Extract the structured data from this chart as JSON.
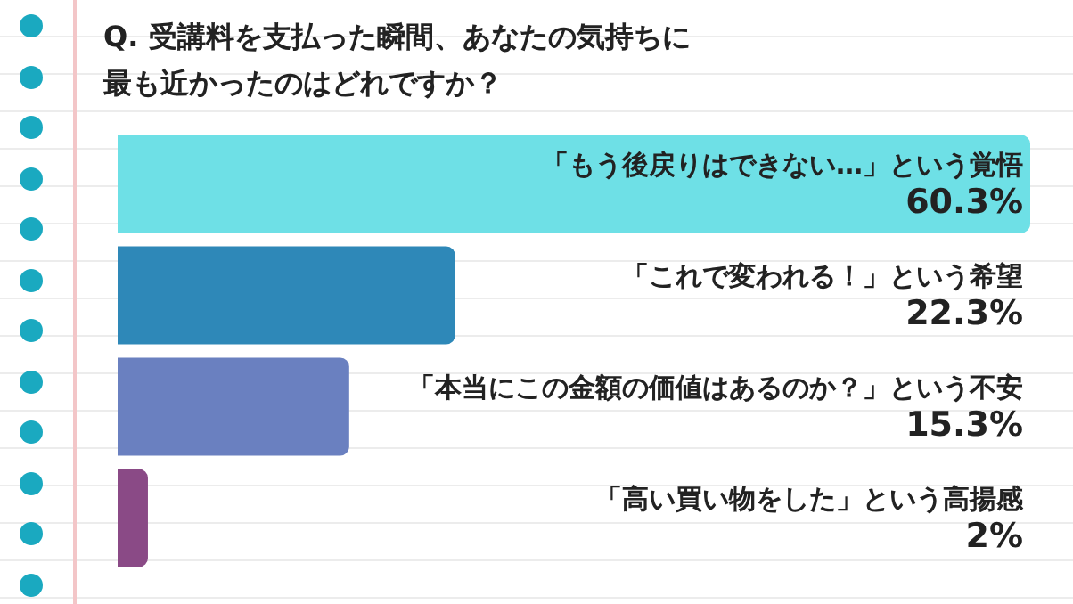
{
  "chart_data": {
    "type": "bar",
    "orientation": "horizontal",
    "title": "Q. 受講料を支払った瞬間、あなたの気持ちに最も近かったのはどれですか？",
    "categories": [
      "「もう後戻りはできない…」という覚悟",
      "「これで変われる！」という希望",
      "「本当にこの金額の価値はあるのか？」という不安",
      "「高い買い物をした」という高揚感"
    ],
    "values": [
      60.3,
      22.3,
      15.3,
      2
    ],
    "colors": [
      "#6ee0e6",
      "#2e88b8",
      "#6a80c0",
      "#8a4a86"
    ],
    "value_labels": [
      "60.3%",
      "22.3%",
      "15.3%",
      "2%"
    ],
    "legend": false
  }
}
